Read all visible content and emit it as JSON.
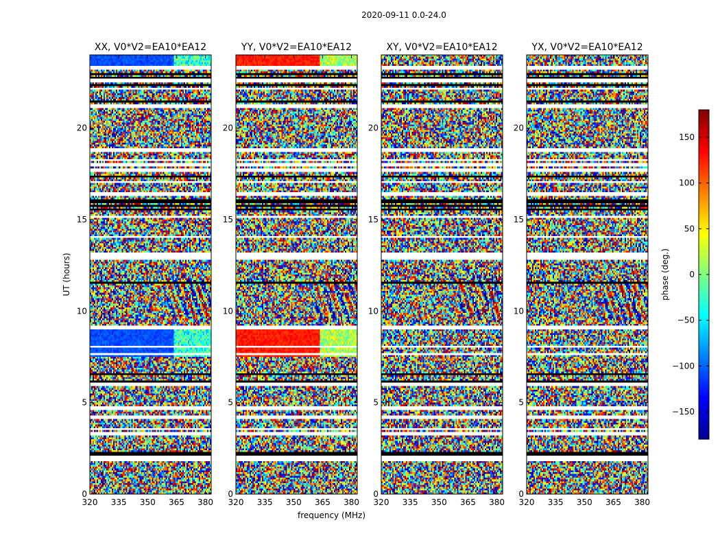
{
  "figure": {
    "title": "2020-09-11 0.0-24.0"
  },
  "colors": {
    "colormap": [
      "#00008f",
      "#0000ff",
      "#0080ff",
      "#00ffff",
      "#80ff80",
      "#ffff00",
      "#ff8000",
      "#ff0000",
      "#800000"
    ],
    "background": "#ffffff",
    "flagged": "#ffffff",
    "dark": "#000000"
  },
  "chart_data": [
    {
      "type": "heatmap",
      "title": "XX, V0*V2=EA10*EA12",
      "xlabel": "",
      "ylabel": "UT (hours)",
      "xlim": [
        320,
        383
      ],
      "ylim": [
        0,
        24
      ],
      "x_ticks": [
        "320",
        "335",
        "350",
        "365",
        "380"
      ],
      "y_ticks": [
        "0",
        "5",
        "10",
        "15",
        "20"
      ],
      "x_tick_values": [
        320,
        335,
        350,
        365,
        380
      ],
      "y_tick_values": [
        0,
        5,
        10,
        15,
        20
      ],
      "value_range": [
        -180,
        180
      ],
      "pattern": "noisy phase with coherent blue band 7.5-9 h and 23.3-24 h, flagged rows",
      "show_y_ticks": true
    },
    {
      "type": "heatmap",
      "title": "YY, V0*V2=EA10*EA12",
      "xlabel": "frequency (MHz)",
      "ylabel": "",
      "xlim": [
        320,
        383
      ],
      "ylim": [
        0,
        24
      ],
      "x_ticks": [
        "320",
        "335",
        "350",
        "365",
        "380"
      ],
      "y_ticks": [
        "0",
        "5",
        "10",
        "15",
        "20"
      ],
      "x_tick_values": [
        320,
        335,
        350,
        365,
        380
      ],
      "y_tick_values": [
        0,
        5,
        10,
        15,
        20
      ],
      "value_range": [
        -180,
        180
      ],
      "pattern": "noisy phase with coherent red band 7.5-9 h and 23.3-24 h, flagged rows",
      "show_y_ticks": true
    },
    {
      "type": "heatmap",
      "title": "XY, V0*V2=EA10*EA12",
      "xlabel": "",
      "ylabel": "",
      "xlim": [
        320,
        383
      ],
      "ylim": [
        0,
        24
      ],
      "x_ticks": [
        "320",
        "335",
        "350",
        "365",
        "380"
      ],
      "y_ticks": [
        "0",
        "5",
        "10",
        "15",
        "20"
      ],
      "x_tick_values": [
        320,
        335,
        350,
        365,
        380
      ],
      "y_tick_values": [
        0,
        5,
        10,
        15,
        20
      ],
      "value_range": [
        -180,
        180
      ],
      "pattern": "noisy phase, flagged rows",
      "show_y_ticks": true
    },
    {
      "type": "heatmap",
      "title": "YX, V0*V2=EA10*EA12",
      "xlabel": "",
      "ylabel": "",
      "xlim": [
        320,
        383
      ],
      "ylim": [
        0,
        24
      ],
      "x_ticks": [
        "320",
        "335",
        "350",
        "365",
        "380"
      ],
      "y_ticks": [
        "0",
        "5",
        "10",
        "15",
        "20"
      ],
      "x_tick_values": [
        320,
        335,
        350,
        365,
        380
      ],
      "y_tick_values": [
        0,
        5,
        10,
        15,
        20
      ],
      "value_range": [
        -180,
        180
      ],
      "pattern": "noisy phase, flagged rows",
      "show_y_ticks": true
    }
  ],
  "colorbar": {
    "label": "phase (deg.)",
    "range": [
      -180,
      180
    ],
    "ticks": [
      "150",
      "100",
      "50",
      "0",
      "−50",
      "−100",
      "−150"
    ],
    "tick_values": [
      150,
      100,
      50,
      0,
      -50,
      -100,
      -150
    ]
  }
}
